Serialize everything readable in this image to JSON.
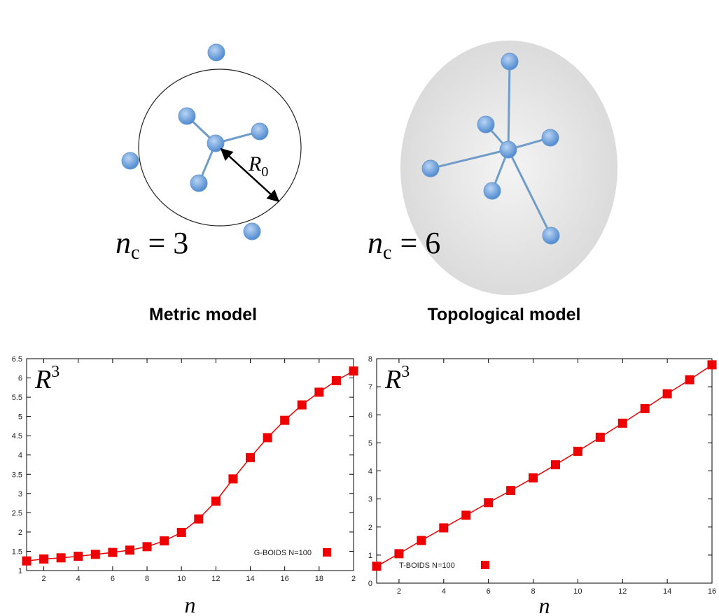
{
  "diagram": {
    "metric": {
      "radius_label": {
        "main": "R",
        "sub": "0"
      },
      "count_label": {
        "main": "n",
        "sub": "c",
        "rest": "= 3"
      },
      "title": "Metric model"
    },
    "topological": {
      "count_label": {
        "main": "n",
        "sub": "c",
        "rest": "= 6"
      },
      "title": "Topological model"
    }
  },
  "chart_data": [
    {
      "type": "line",
      "y_label": {
        "main": "R",
        "sup": "3"
      },
      "x_label": "n",
      "x": [
        1,
        2,
        3,
        4,
        5,
        6,
        7,
        8,
        9,
        10,
        11,
        12,
        13,
        14,
        15,
        16,
        17,
        18,
        19,
        20
      ],
      "series": [
        {
          "name": "G-BOIDS N=100",
          "color": "#ee0000",
          "values": [
            1.25,
            1.3,
            1.33,
            1.37,
            1.42,
            1.47,
            1.53,
            1.62,
            1.77,
            1.99,
            2.34,
            2.8,
            3.38,
            3.93,
            4.45,
            4.9,
            5.3,
            5.63,
            5.93,
            6.18
          ]
        }
      ],
      "xlim": [
        1,
        20
      ],
      "xticks": [
        2,
        4,
        6,
        8,
        10,
        12,
        14,
        16,
        18,
        {
          "value": 20,
          "label": "2"
        }
      ],
      "ylim": [
        1,
        6.5
      ],
      "yticks": [
        1,
        1.5,
        2,
        2.5,
        3,
        3.5,
        4,
        4.5,
        5,
        5.5,
        6,
        6.5
      ],
      "legend": "lower right"
    },
    {
      "type": "line",
      "y_label": {
        "main": "R",
        "sup": "3"
      },
      "x_label": "n",
      "x": [
        1,
        2,
        3,
        4,
        5,
        6,
        7,
        8,
        9,
        10,
        11,
        12,
        13,
        14,
        15,
        16
      ],
      "series": [
        {
          "name": "T-BOIDS N=100",
          "color": "#ee0000",
          "values": [
            0.6,
            1.05,
            1.52,
            1.97,
            2.42,
            2.87,
            3.3,
            3.75,
            4.22,
            4.7,
            5.2,
            5.7,
            6.22,
            6.75,
            7.25,
            7.78
          ]
        }
      ],
      "xlim": [
        1,
        16
      ],
      "xticks": [
        2,
        4,
        6,
        8,
        10,
        12,
        14,
        16
      ],
      "ylim": [
        0,
        8
      ],
      "yticks": [
        0,
        1,
        2,
        3,
        4,
        5,
        6,
        7,
        8
      ],
      "legend": "lower left"
    }
  ]
}
